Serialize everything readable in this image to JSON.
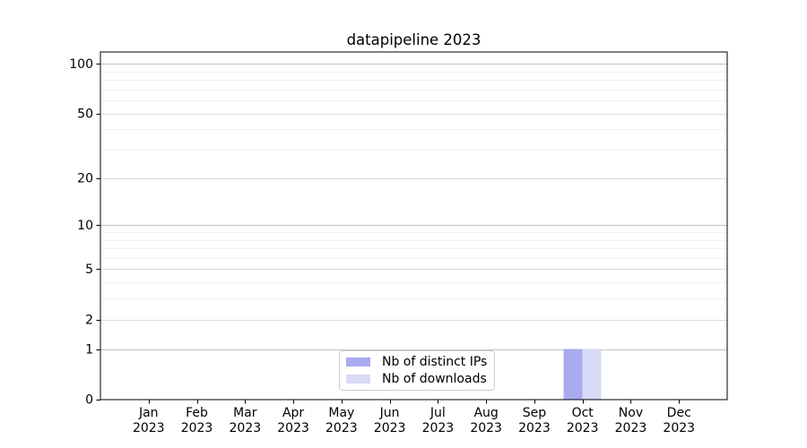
{
  "chart_data": {
    "type": "bar",
    "title": "datapipeline 2023",
    "categories": [
      "Jan 2023",
      "Feb 2023",
      "Mar 2023",
      "Apr 2023",
      "May 2023",
      "Jun 2023",
      "Jul 2023",
      "Aug 2023",
      "Sep 2023",
      "Oct 2023",
      "Nov 2023",
      "Dec 2023"
    ],
    "series": [
      {
        "name": "Nb of distinct IPs",
        "color": "#aaaaf0",
        "values": [
          0,
          0,
          0,
          0,
          0,
          0,
          0,
          0,
          0,
          1,
          0,
          0
        ]
      },
      {
        "name": "Nb of downloads",
        "color": "#d9d9f8",
        "values": [
          0,
          0,
          0,
          0,
          0,
          0,
          0,
          0,
          0,
          1,
          0,
          0
        ]
      }
    ],
    "xlabel": "",
    "ylabel": "",
    "yscale": "log1p",
    "ylim": [
      0,
      118
    ],
    "yticks": [
      0,
      1,
      2,
      5,
      10,
      20,
      50,
      100
    ],
    "minor_yticks": [
      3,
      4,
      6,
      7,
      8,
      9,
      30,
      40,
      60,
      70,
      80,
      90
    ],
    "grid": "both",
    "legend_position": "lower center",
    "grid_colors": {
      "major": "#c4c4c4",
      "labeled": "#dcdcdc",
      "minor": "#efefef"
    },
    "spine_color": "#000000",
    "background_color": "#ffffff"
  }
}
